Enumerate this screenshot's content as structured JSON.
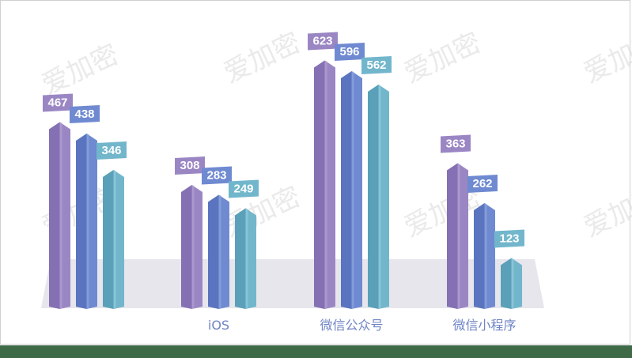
{
  "chart_data": {
    "type": "bar",
    "categories": [
      "",
      "iOS",
      "微信公众号",
      "微信小程序"
    ],
    "series": [
      {
        "values": [
          467,
          308,
          623,
          363
        ]
      },
      {
        "values": [
          438,
          283,
          596,
          262
        ]
      },
      {
        "values": [
          346,
          249,
          562,
          123
        ]
      }
    ],
    "ylim": [
      0,
      650
    ],
    "grid": false,
    "legend": "none"
  },
  "colors": {
    "series": [
      "#9b86c4",
      "#6f8ad1",
      "#72b6cc"
    ],
    "series_dark": [
      "#8470b3",
      "#5a74bf",
      "#5aa0b8"
    ],
    "series_light": [
      "#b6a5d6",
      "#91a8e0",
      "#98cddd"
    ],
    "floor": "#e6e6ec",
    "category_text": "#6f84c4"
  },
  "watermark": {
    "text": "爱加密"
  }
}
